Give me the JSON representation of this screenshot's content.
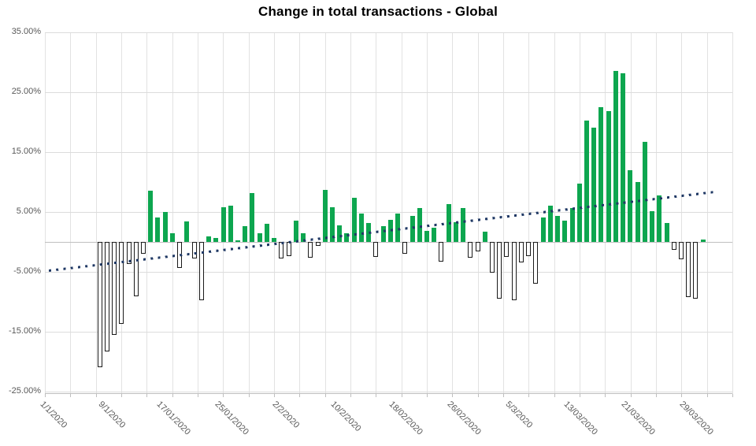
{
  "title": "Change in total transactions - Global",
  "chart_data": {
    "type": "bar",
    "title": "Change in total transactions - Global",
    "unit": "percent",
    "grid": true,
    "legend": "none",
    "ylim": [
      -25,
      35
    ],
    "y_ticks": {
      "labels": [
        "35.00%",
        "25.00%",
        "15.00%",
        "5.00%",
        "-5.00%",
        "-15.00%",
        "-25.00%"
      ],
      "values": [
        35,
        25,
        15,
        5,
        -5,
        -15,
        -25
      ]
    },
    "x_ticks": {
      "labels": [
        "1/1/2020",
        "9/1/2020",
        "17/01/2020",
        "25/01/2020",
        "2/2/2020",
        "10/2/2020",
        "18/02/2020",
        "26/02/2020",
        "5/3/2020",
        "13/03/2020",
        "21/03/2020",
        "29/03/2020"
      ],
      "day_indices": [
        0,
        8,
        16,
        24,
        32,
        40,
        48,
        56,
        64,
        72,
        80,
        88
      ]
    },
    "dates": [
      "1/1/2020",
      "2/1/2020",
      "3/1/2020",
      "4/1/2020",
      "5/1/2020",
      "6/1/2020",
      "7/1/2020",
      "8/1/2020",
      "9/1/2020",
      "10/1/2020",
      "11/1/2020",
      "12/1/2020",
      "13/1/2020",
      "14/1/2020",
      "15/1/2020",
      "16/1/2020",
      "17/1/2020",
      "18/1/2020",
      "19/1/2020",
      "20/1/2020",
      "21/1/2020",
      "22/1/2020",
      "23/1/2020",
      "24/1/2020",
      "25/1/2020",
      "26/1/2020",
      "27/1/2020",
      "28/1/2020",
      "29/1/2020",
      "30/1/2020",
      "31/1/2020",
      "1/2/2020",
      "2/2/2020",
      "3/2/2020",
      "4/2/2020",
      "5/2/2020",
      "6/2/2020",
      "7/2/2020",
      "8/2/2020",
      "9/2/2020",
      "10/2/2020",
      "11/2/2020",
      "12/2/2020",
      "13/2/2020",
      "14/2/2020",
      "15/2/2020",
      "16/2/2020",
      "17/2/2020",
      "18/2/2020",
      "19/2/2020",
      "20/2/2020",
      "21/2/2020",
      "22/2/2020",
      "23/2/2020",
      "24/2/2020",
      "25/2/2020",
      "26/2/2020",
      "27/2/2020",
      "28/2/2020",
      "29/2/2020",
      "1/3/2020",
      "2/3/2020",
      "3/3/2020",
      "4/3/2020",
      "5/3/2020",
      "6/3/2020",
      "7/3/2020",
      "8/3/2020",
      "9/3/2020",
      "10/3/2020",
      "11/3/2020",
      "12/3/2020",
      "13/3/2020",
      "14/3/2020",
      "15/3/2020",
      "16/3/2020",
      "17/3/2020",
      "18/3/2020",
      "19/3/2020",
      "20/3/2020",
      "21/3/2020",
      "22/3/2020",
      "23/3/2020",
      "24/3/2020",
      "25/3/2020",
      "26/3/2020",
      "27/3/2020",
      "28/3/2020",
      "29/3/2020",
      "30/3/2020",
      "31/3/2020"
    ],
    "values": [
      0,
      0,
      0,
      0,
      0,
      0,
      0,
      -20.8,
      -18.2,
      -15.4,
      -13.5,
      -3.6,
      -9.0,
      -1.9,
      8.5,
      4.1,
      5.0,
      1.5,
      -4.2,
      3.4,
      -2.6,
      -9.6,
      0.9,
      0.6,
      5.8,
      6.0,
      0.3,
      2.6,
      8.2,
      1.5,
      3.0,
      0.6,
      -2.6,
      -2.2,
      3.6,
      1.4,
      -2.5,
      -0.5,
      8.7,
      5.8,
      2.7,
      1.5,
      7.4,
      4.8,
      3.1,
      -2.4,
      2.6,
      3.7,
      4.7,
      -1.8,
      4.3,
      5.6,
      1.9,
      2.4,
      -3.2,
      6.3,
      3.3,
      5.7,
      -2.5,
      -1.4,
      1.7,
      -5.0,
      -9.3,
      -2.4,
      -9.6,
      -3.3,
      -2.2,
      -6.9,
      4.1,
      6.0,
      4.3,
      3.6,
      5.6,
      9.7,
      20.3,
      19.1,
      22.5,
      21.9,
      28.5,
      28.2,
      12.0,
      10.0,
      16.7,
      5.1,
      7.8,
      3.1,
      -1.2,
      -2.8,
      -9.1,
      -9.4,
      0.4
    ],
    "trendline": {
      "style": "dotted",
      "start_value_pct": -4.8,
      "end_value_pct": 8.4
    },
    "colors": {
      "positive_bar": "#0da64f",
      "negative_bar_fill": "#ffffff",
      "negative_bar_border": "#1a1a1a",
      "trendline": "#1f3864",
      "gridline": "#dcdcdc",
      "axis_text": "#595959",
      "title_text": "#000000"
    }
  }
}
